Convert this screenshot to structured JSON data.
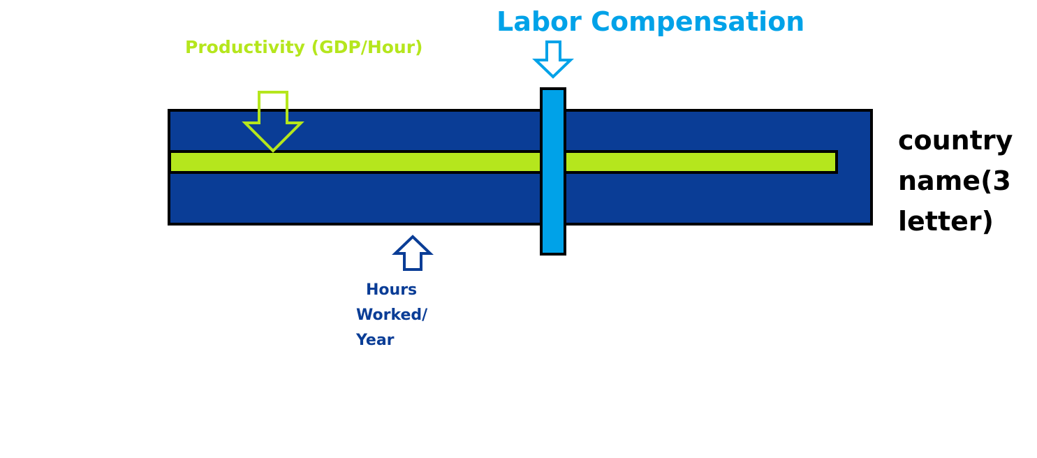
{
  "colors": {
    "background": "#ffffff",
    "hours_bar": "#0a3d96",
    "productivity_bar": "#b5e61d",
    "compensation_bar": "#00a2e8",
    "outline": "#000000",
    "labor_text": "#00a2e8",
    "productivity_text": "#b5e61d",
    "hours_text": "#0a3d96",
    "country_text": "#000000"
  },
  "labels": {
    "labor_compensation": "Labor Compensation",
    "productivity": "Productivity (GDP/Hour)",
    "hours_line1": "Hours",
    "hours_line2": "Worked/",
    "hours_line3": "Year",
    "country_line1": "country",
    "country_line2": "name(3",
    "country_line3": "letter)"
  },
  "icons": {
    "labor_arrow": "down-arrow-icon",
    "productivity_arrow": "down-arrow-icon",
    "hours_arrow": "up-arrow-icon"
  }
}
